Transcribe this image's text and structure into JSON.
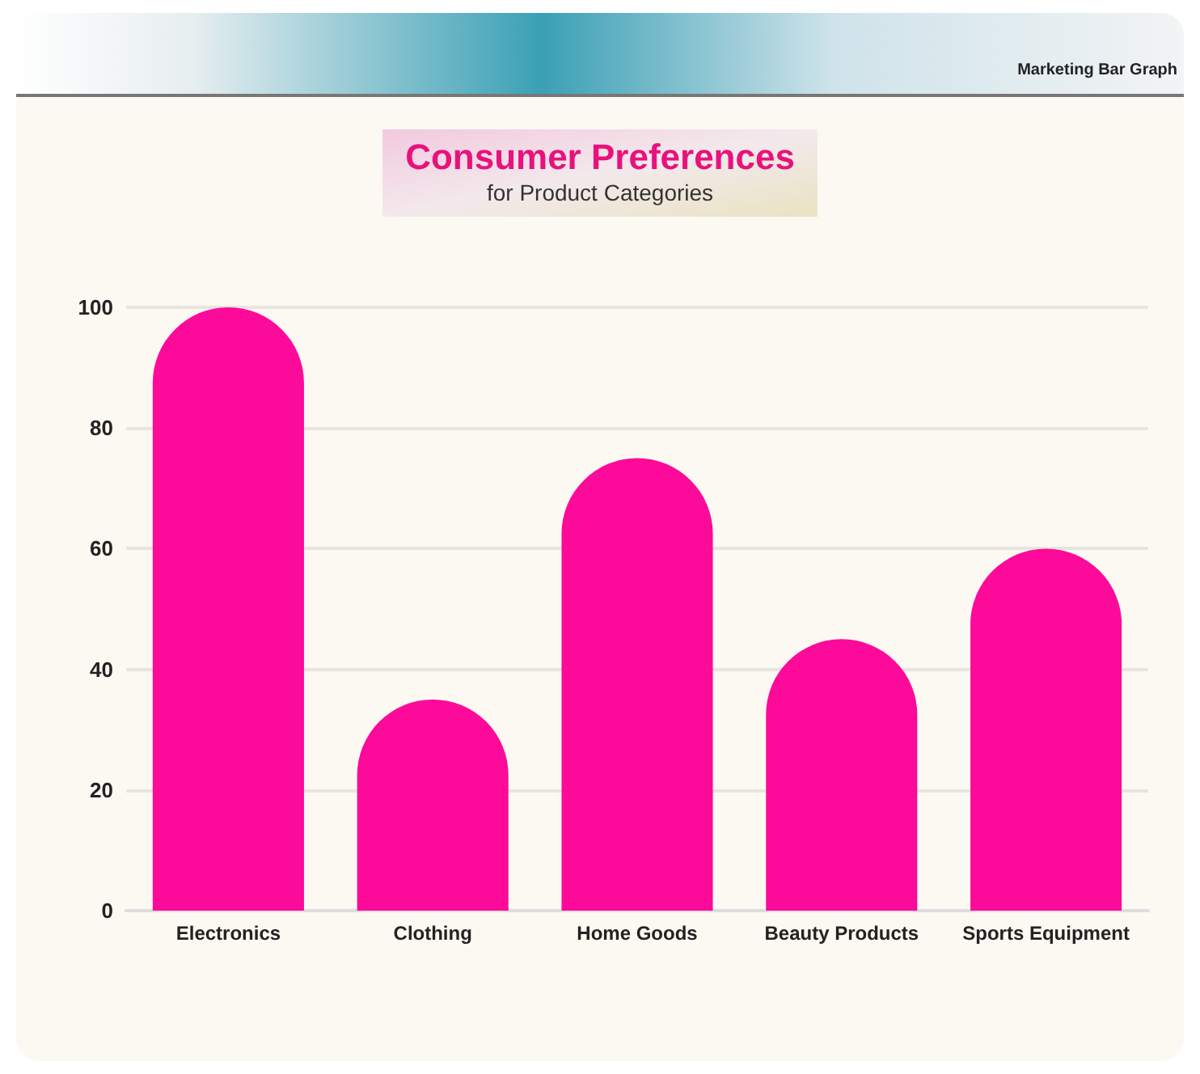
{
  "chart_data": {
    "type": "bar",
    "title": "Consumer Preferences",
    "subtitle": "for Product Categories",
    "annotations": [
      "Marketing Bar Graph"
    ],
    "categories": [
      "Electronics",
      "Clothing",
      "Home Goods",
      "Beauty Products",
      "Sports Equipment"
    ],
    "values": [
      100,
      35,
      75,
      45,
      60
    ],
    "color": "#fc0a9a",
    "ylim": [
      0,
      100
    ],
    "yticks": [
      0,
      20,
      40,
      60,
      80,
      100
    ],
    "grid": "y"
  }
}
